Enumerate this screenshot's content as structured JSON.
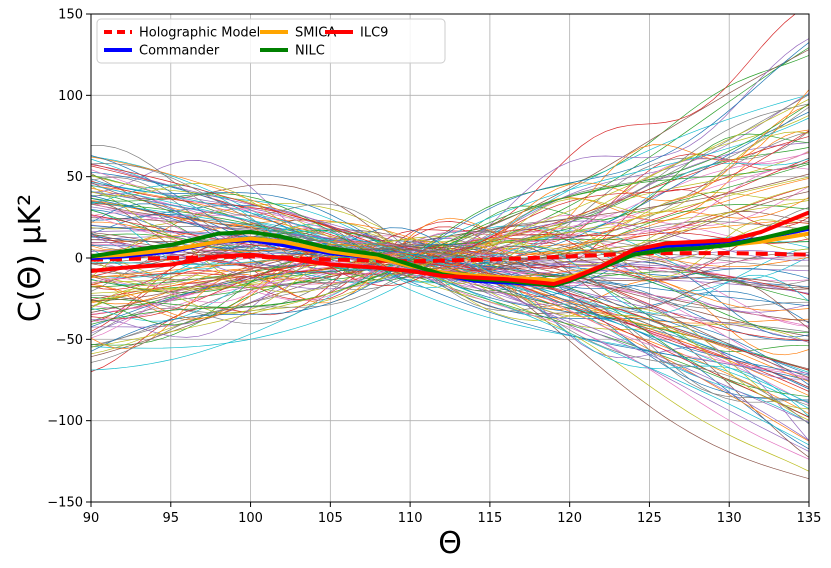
{
  "chart_data": {
    "type": "line",
    "xlabel": "Θ",
    "ylabel": "C(Θ) μK²",
    "xlim": [
      90,
      135
    ],
    "ylim": [
      -150,
      150
    ],
    "xticks": [
      90,
      95,
      100,
      105,
      110,
      115,
      120,
      125,
      130,
      135
    ],
    "yticks": [
      -150,
      -100,
      -50,
      0,
      50,
      100,
      150
    ],
    "grid": true,
    "legend_position": "top-left",
    "legend_columns": 3,
    "background_realizations": {
      "description_count": 150,
      "linewidth": "thin",
      "palette": [
        "#1f77b4",
        "#ff7f0e",
        "#2ca02c",
        "#d62728",
        "#9467bd",
        "#8c564b",
        "#e377c2",
        "#7f7f7f",
        "#bcbd22",
        "#17becf"
      ]
    },
    "series": [
      {
        "name": "Holographic Model",
        "color": "#ff0000",
        "dashed": true,
        "x": [
          90,
          95,
          100,
          105,
          110,
          115,
          120,
          125,
          130,
          135
        ],
        "values": [
          -1,
          0,
          1,
          -1,
          -2,
          -1,
          1,
          3,
          3,
          2
        ]
      },
      {
        "name": "Commander",
        "color": "#0000ff",
        "dashed": false,
        "x": [
          90,
          92,
          95,
          98,
          100,
          102,
          105,
          108,
          110,
          112,
          114,
          116,
          118,
          119,
          120,
          122,
          124,
          126,
          128,
          130,
          132,
          135
        ],
        "values": [
          0,
          1,
          4,
          10,
          11,
          8,
          3,
          0,
          -5,
          -10,
          -14,
          -15,
          -16,
          -17,
          -14,
          -6,
          3,
          7,
          8,
          9,
          12,
          18
        ]
      },
      {
        "name": "SMICA",
        "color": "#ffa500",
        "dashed": false,
        "x": [
          90,
          92,
          95,
          98,
          100,
          102,
          105,
          108,
          110,
          112,
          114,
          116,
          118,
          119,
          120,
          122,
          124,
          126,
          128,
          130,
          132,
          135
        ],
        "values": [
          1,
          2,
          5,
          10,
          12,
          10,
          4,
          0,
          -5,
          -9,
          -11,
          -12,
          -13,
          -14,
          -12,
          -5,
          2,
          5,
          6,
          8,
          10,
          15
        ]
      },
      {
        "name": "NILC",
        "color": "#008000",
        "dashed": false,
        "x": [
          90,
          92,
          95,
          98,
          100,
          102,
          105,
          108,
          110,
          112,
          114,
          116,
          118,
          119,
          120,
          122,
          124,
          126,
          128,
          130,
          132,
          135
        ],
        "values": [
          1,
          4,
          8,
          15,
          16,
          13,
          6,
          2,
          -4,
          -10,
          -13,
          -14,
          -16,
          -17,
          -14,
          -6,
          2,
          5,
          6,
          8,
          12,
          19
        ]
      },
      {
        "name": "ILC9",
        "color": "#ff0000",
        "dashed": false,
        "x": [
          90,
          92,
          95,
          98,
          100,
          102,
          105,
          108,
          110,
          112,
          114,
          116,
          118,
          119,
          120,
          122,
          124,
          126,
          128,
          130,
          132,
          135
        ],
        "values": [
          -8,
          -6,
          -4,
          1,
          2,
          0,
          -4,
          -6,
          -8,
          -11,
          -12,
          -13,
          -15,
          -16,
          -13,
          -5,
          5,
          9,
          10,
          11,
          16,
          28
        ]
      }
    ]
  }
}
